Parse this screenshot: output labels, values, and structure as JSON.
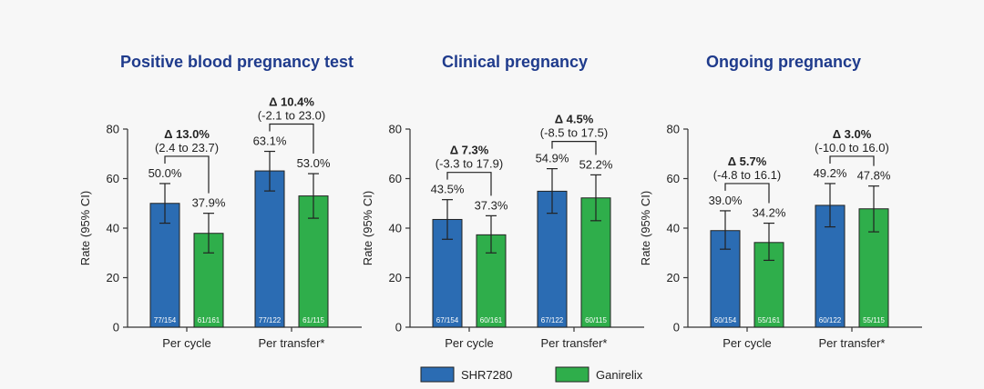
{
  "chart_data": [
    {
      "type": "bar",
      "title": "Positive blood pregnancy test",
      "ylabel": "Rate (95% CI)",
      "ylim": [
        0,
        80
      ],
      "yticks": [
        "0",
        "20",
        "40",
        "60",
        "80"
      ],
      "categories": [
        "Per cycle",
        "Per transfer*"
      ],
      "series": [
        {
          "name": "SHR7280",
          "values": [
            50.0,
            63.1
          ],
          "ci_low": [
            42,
            55
          ],
          "ci_high": [
            58,
            71
          ],
          "labels": [
            "50.0%",
            "63.1%"
          ],
          "n": [
            "77/154",
            "77/122"
          ]
        },
        {
          "name": "Ganirelix",
          "values": [
            37.9,
            53.0
          ],
          "ci_low": [
            30,
            44
          ],
          "ci_high": [
            46,
            62
          ],
          "labels": [
            "37.9%",
            "53.0%"
          ],
          "n": [
            "61/161",
            "61/115"
          ]
        }
      ],
      "deltas": [
        {
          "delta": "Δ 13.0%",
          "ci": "(2.4 to 23.7)"
        },
        {
          "delta": "Δ 10.4%",
          "ci": "(-2.1 to 23.0)"
        }
      ]
    },
    {
      "type": "bar",
      "title": "Clinical pregnancy",
      "ylabel": "Rate (95% CI)",
      "ylim": [
        0,
        80
      ],
      "yticks": [
        "0",
        "20",
        "40",
        "60",
        "80"
      ],
      "categories": [
        "Per cycle",
        "Per transfer*"
      ],
      "series": [
        {
          "name": "SHR7280",
          "values": [
            43.5,
            54.9
          ],
          "ci_low": [
            35.5,
            46
          ],
          "ci_high": [
            51.5,
            64
          ],
          "labels": [
            "43.5%",
            "54.9%"
          ],
          "n": [
            "67/154",
            "67/122"
          ]
        },
        {
          "name": "Ganirelix",
          "values": [
            37.3,
            52.2
          ],
          "ci_low": [
            30,
            43
          ],
          "ci_high": [
            45,
            61.5
          ],
          "labels": [
            "37.3%",
            "52.2%"
          ],
          "n": [
            "60/161",
            "60/115"
          ]
        }
      ],
      "deltas": [
        {
          "delta": "Δ 7.3%",
          "ci": "(-3.3 to 17.9)"
        },
        {
          "delta": "Δ 4.5%",
          "ci": "(-8.5 to 17.5)"
        }
      ]
    },
    {
      "type": "bar",
      "title": "Ongoing pregnancy",
      "ylabel": "Rate (95% CI)",
      "ylim": [
        0,
        80
      ],
      "yticks": [
        "0",
        "20",
        "40",
        "60",
        "80"
      ],
      "categories": [
        "Per cycle",
        "Per transfer*"
      ],
      "series": [
        {
          "name": "SHR7280",
          "values": [
            39.0,
            49.2
          ],
          "ci_low": [
            31.5,
            40.5
          ],
          "ci_high": [
            47,
            58
          ],
          "labels": [
            "39.0%",
            "49.2%"
          ],
          "n": [
            "60/154",
            "60/122"
          ]
        },
        {
          "name": "Ganirelix",
          "values": [
            34.2,
            47.8
          ],
          "ci_low": [
            27,
            38.5
          ],
          "ci_high": [
            42,
            57
          ],
          "labels": [
            "34.2%",
            "47.8%"
          ],
          "n": [
            "55/161",
            "55/115"
          ]
        }
      ],
      "deltas": [
        {
          "delta": "Δ 5.7%",
          "ci": "(-4.8 to 16.1)"
        },
        {
          "delta": "Δ 3.0%",
          "ci": "(-10.0 to 16.0)"
        }
      ]
    }
  ],
  "legend": [
    {
      "label": "SHR7280",
      "color": "#2b6cb3"
    },
    {
      "label": "Ganirelix",
      "color": "#2fae4b"
    }
  ],
  "colors": {
    "series0": "#2b6cb3",
    "series1": "#2fae4b",
    "title": "#1f3b8c"
  }
}
